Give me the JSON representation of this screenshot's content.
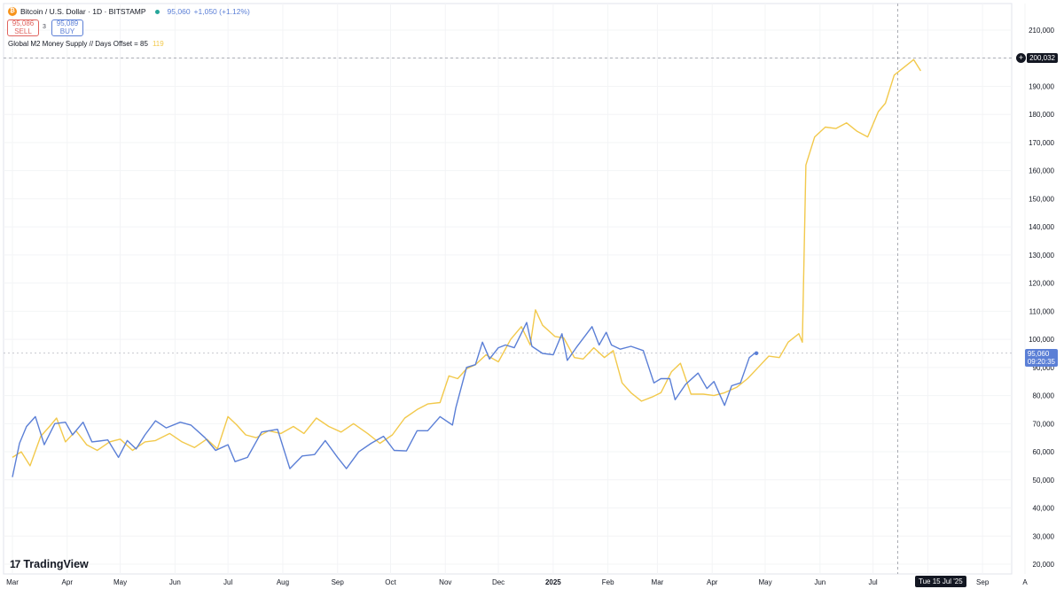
{
  "header": {
    "symbol_title": "Bitcoin / U.S. Dollar · 1D · BITSTAMP",
    "last_price": "95,060",
    "change": "+1,050 (+1.12%)",
    "sell_price": "95,086",
    "sell_label": "SELL",
    "buy_price": "95,089",
    "buy_label": "BUY",
    "spread": "3"
  },
  "indicator": {
    "name": "Global M2 Money Supply // Days Offset = 85",
    "value": "119"
  },
  "price_tags": {
    "crosshair_price": "200,032",
    "btc_price": "95,060",
    "btc_countdown": "09:20:35",
    "crosshair_date": "Tue 15 Jul '25"
  },
  "branding": {
    "logo_text": "TradingView"
  },
  "colors": {
    "btc": "#5b7fd6",
    "m2": "#f2c94c",
    "grid": "#f3f4f6",
    "axis_text": "#131722"
  },
  "chart_data": {
    "type": "line",
    "ylim": [
      20000,
      210000
    ],
    "y_ticks": [
      "20,000",
      "30,000",
      "40,000",
      "50,000",
      "60,000",
      "70,000",
      "80,000",
      "90,000",
      "100,000",
      "110,000",
      "120,000",
      "130,000",
      "140,000",
      "150,000",
      "160,000",
      "170,000",
      "180,000",
      "190,000",
      "200,000",
      "210,000"
    ],
    "x_ticks": [
      "Mar",
      "Apr",
      "May",
      "Jun",
      "Jul",
      "Aug",
      "Sep",
      "Oct",
      "Nov",
      "Dec",
      "2025",
      "Feb",
      "Mar",
      "Apr",
      "May",
      "Jun",
      "Jul",
      "Aug",
      "Sep",
      "A"
    ],
    "x_range": [
      "2024-03-01",
      "2025-09-25"
    ],
    "series": [
      {
        "name": "Bitcoin / U.S. Dollar",
        "color": "#5b7fd6",
        "points": [
          [
            "2024-03-01",
            51000
          ],
          [
            "2024-03-05",
            63000
          ],
          [
            "2024-03-09",
            69000
          ],
          [
            "2024-03-14",
            72500
          ],
          [
            "2024-03-19",
            62500
          ],
          [
            "2024-03-25",
            70000
          ],
          [
            "2024-03-31",
            70500
          ],
          [
            "2024-04-04",
            66000
          ],
          [
            "2024-04-10",
            70500
          ],
          [
            "2024-04-15",
            63500
          ],
          [
            "2024-04-19",
            63800
          ],
          [
            "2024-04-24",
            64200
          ],
          [
            "2024-04-30",
            58000
          ],
          [
            "2024-05-05",
            64000
          ],
          [
            "2024-05-10",
            61000
          ],
          [
            "2024-05-15",
            66000
          ],
          [
            "2024-05-21",
            71000
          ],
          [
            "2024-05-27",
            68500
          ],
          [
            "2024-06-04",
            70500
          ],
          [
            "2024-06-10",
            69500
          ],
          [
            "2024-06-18",
            65000
          ],
          [
            "2024-06-24",
            60500
          ],
          [
            "2024-07-01",
            62500
          ],
          [
            "2024-07-05",
            56500
          ],
          [
            "2024-07-12",
            58000
          ],
          [
            "2024-07-20",
            67000
          ],
          [
            "2024-07-29",
            68000
          ],
          [
            "2024-08-05",
            54000
          ],
          [
            "2024-08-12",
            58500
          ],
          [
            "2024-08-19",
            59000
          ],
          [
            "2024-08-25",
            64000
          ],
          [
            "2024-09-01",
            58000
          ],
          [
            "2024-09-06",
            54000
          ],
          [
            "2024-09-13",
            60000
          ],
          [
            "2024-09-20",
            63000
          ],
          [
            "2024-09-27",
            65500
          ],
          [
            "2024-10-03",
            60500
          ],
          [
            "2024-10-10",
            60300
          ],
          [
            "2024-10-16",
            67500
          ],
          [
            "2024-10-22",
            67500
          ],
          [
            "2024-10-29",
            72500
          ],
          [
            "2024-11-05",
            69500
          ],
          [
            "2024-11-07",
            75800
          ],
          [
            "2024-11-13",
            90000
          ],
          [
            "2024-11-18",
            91000
          ],
          [
            "2024-11-22",
            99000
          ],
          [
            "2024-11-26",
            93000
          ],
          [
            "2024-12-01",
            97000
          ],
          [
            "2024-12-05",
            98000
          ],
          [
            "2024-12-10",
            97000
          ],
          [
            "2024-12-17",
            106000
          ],
          [
            "2024-12-20",
            97500
          ],
          [
            "2024-12-26",
            95000
          ],
          [
            "2025-01-01",
            94500
          ],
          [
            "2025-01-06",
            102000
          ],
          [
            "2025-01-09",
            92500
          ],
          [
            "2025-01-14",
            97000
          ],
          [
            "2025-01-20",
            102000
          ],
          [
            "2025-01-23",
            104500
          ],
          [
            "2025-01-27",
            98000
          ],
          [
            "2025-01-31",
            102500
          ],
          [
            "2025-02-03",
            98000
          ],
          [
            "2025-02-08",
            96500
          ],
          [
            "2025-02-14",
            97500
          ],
          [
            "2025-02-21",
            96000
          ],
          [
            "2025-02-27",
            84500
          ],
          [
            "2025-03-03",
            86000
          ],
          [
            "2025-03-08",
            86000
          ],
          [
            "2025-03-11",
            78500
          ],
          [
            "2025-03-17",
            84000
          ],
          [
            "2025-03-24",
            88000
          ],
          [
            "2025-03-29",
            82500
          ],
          [
            "2025-04-02",
            85000
          ],
          [
            "2025-04-08",
            76500
          ],
          [
            "2025-04-12",
            83500
          ],
          [
            "2025-04-17",
            84500
          ],
          [
            "2025-04-22",
            93500
          ],
          [
            "2025-04-25",
            95000
          ],
          [
            "2025-04-26",
            95060
          ]
        ]
      },
      {
        "name": "Global M2 Money Supply // Days Offset = 85",
        "color": "#f2c94c",
        "points": [
          [
            "2024-03-01",
            58000
          ],
          [
            "2024-03-06",
            60000
          ],
          [
            "2024-03-11",
            55000
          ],
          [
            "2024-03-17",
            65500
          ],
          [
            "2024-03-22",
            69000
          ],
          [
            "2024-03-26",
            72000
          ],
          [
            "2024-03-31",
            63500
          ],
          [
            "2024-04-06",
            67500
          ],
          [
            "2024-04-12",
            62500
          ],
          [
            "2024-04-18",
            60500
          ],
          [
            "2024-04-25",
            63500
          ],
          [
            "2024-05-01",
            64500
          ],
          [
            "2024-05-08",
            60500
          ],
          [
            "2024-05-15",
            63500
          ],
          [
            "2024-05-21",
            64000
          ],
          [
            "2024-05-29",
            66500
          ],
          [
            "2024-06-05",
            63500
          ],
          [
            "2024-06-12",
            61500
          ],
          [
            "2024-06-19",
            64500
          ],
          [
            "2024-06-25",
            61000
          ],
          [
            "2024-07-01",
            72500
          ],
          [
            "2024-07-06",
            69500
          ],
          [
            "2024-07-11",
            66000
          ],
          [
            "2024-07-17",
            65000
          ],
          [
            "2024-07-24",
            67500
          ],
          [
            "2024-07-31",
            66500
          ],
          [
            "2024-08-07",
            69000
          ],
          [
            "2024-08-13",
            66500
          ],
          [
            "2024-08-20",
            72000
          ],
          [
            "2024-08-27",
            69000
          ],
          [
            "2024-09-03",
            67000
          ],
          [
            "2024-09-10",
            70000
          ],
          [
            "2024-09-18",
            66500
          ],
          [
            "2024-09-25",
            63000
          ],
          [
            "2024-10-02",
            66000
          ],
          [
            "2024-10-09",
            72000
          ],
          [
            "2024-10-16",
            75000
          ],
          [
            "2024-10-22",
            77000
          ],
          [
            "2024-10-29",
            77500
          ],
          [
            "2024-11-03",
            87000
          ],
          [
            "2024-11-08",
            86000
          ],
          [
            "2024-11-13",
            89500
          ],
          [
            "2024-11-18",
            91000
          ],
          [
            "2024-11-24",
            94500
          ],
          [
            "2024-12-01",
            92000
          ],
          [
            "2024-12-08",
            100000
          ],
          [
            "2024-12-14",
            104500
          ],
          [
            "2024-12-19",
            98000
          ],
          [
            "2024-12-22",
            110500
          ],
          [
            "2024-12-26",
            105000
          ],
          [
            "2025-01-02",
            101000
          ],
          [
            "2025-01-07",
            100500
          ],
          [
            "2025-01-13",
            93500
          ],
          [
            "2025-01-18",
            93000
          ],
          [
            "2025-01-24",
            97000
          ],
          [
            "2025-01-30",
            93500
          ],
          [
            "2025-02-04",
            96000
          ],
          [
            "2025-02-09",
            84500
          ],
          [
            "2025-02-14",
            81000
          ],
          [
            "2025-02-20",
            78000
          ],
          [
            "2025-02-26",
            79500
          ],
          [
            "2025-03-03",
            81000
          ],
          [
            "2025-03-09",
            88500
          ],
          [
            "2025-03-14",
            91500
          ],
          [
            "2025-03-20",
            80500
          ],
          [
            "2025-03-27",
            80500
          ],
          [
            "2025-04-02",
            80000
          ],
          [
            "2025-04-08",
            81000
          ],
          [
            "2025-04-15",
            83000
          ],
          [
            "2025-04-21",
            86000
          ],
          [
            "2025-04-27",
            90000
          ],
          [
            "2025-05-03",
            94000
          ],
          [
            "2025-05-09",
            93500
          ],
          [
            "2025-05-14",
            99000
          ],
          [
            "2025-05-20",
            102000
          ],
          [
            "2025-05-22",
            99000
          ],
          [
            "2025-05-24",
            162000
          ],
          [
            "2025-05-29",
            172000
          ],
          [
            "2025-06-04",
            175500
          ],
          [
            "2025-06-10",
            175000
          ],
          [
            "2025-06-16",
            177000
          ],
          [
            "2025-06-22",
            174000
          ],
          [
            "2025-06-28",
            172000
          ],
          [
            "2025-07-04",
            181000
          ],
          [
            "2025-07-08",
            184000
          ],
          [
            "2025-07-13",
            194000
          ],
          [
            "2025-07-17",
            196000
          ],
          [
            "2025-07-21",
            198000
          ],
          [
            "2025-07-24",
            199500
          ],
          [
            "2025-07-28",
            195500
          ]
        ]
      }
    ]
  }
}
